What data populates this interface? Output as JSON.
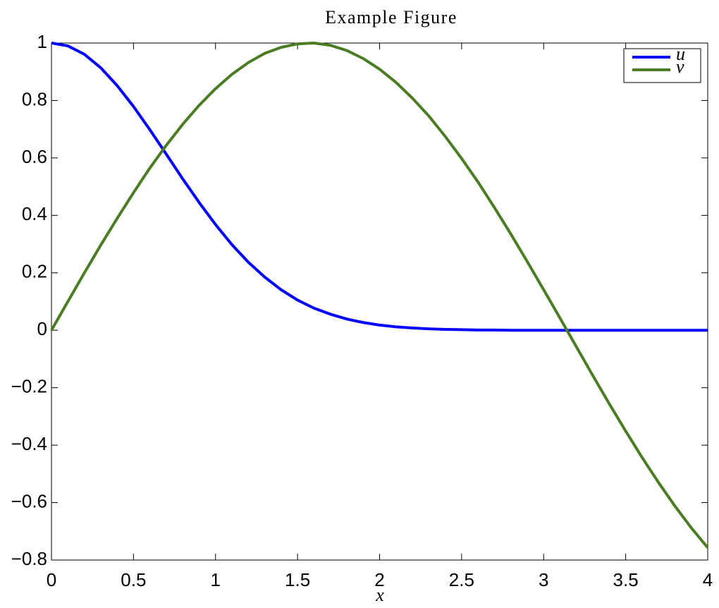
{
  "chart_data": {
    "type": "line",
    "title": "Example Figure",
    "x_label": "x",
    "x": [
      0,
      0.1,
      0.2,
      0.3,
      0.4,
      0.5,
      0.6,
      0.7,
      0.8,
      0.9,
      1,
      1.1,
      1.2,
      1.3,
      1.4,
      1.5,
      1.6,
      1.7,
      1.8,
      1.9,
      2,
      2.1,
      2.2,
      2.3,
      2.4,
      2.5,
      2.6,
      2.7,
      2.8,
      2.9,
      3,
      3.1,
      3.2,
      3.3,
      3.4,
      3.5,
      3.6,
      3.7,
      3.8,
      3.9,
      4
    ],
    "series": [
      {
        "name": "u",
        "color": "#0000ff",
        "values": [
          1,
          0.99,
          0.961,
          0.914,
          0.852,
          0.779,
          0.698,
          0.613,
          0.527,
          0.445,
          0.368,
          0.298,
          0.237,
          0.185,
          0.141,
          0.105,
          0.077,
          0.056,
          0.039,
          0.027,
          0.018,
          0.012,
          0.008,
          0.005,
          0.003,
          0.002,
          0.001,
          0.001,
          0,
          0,
          0,
          0,
          0,
          0,
          0,
          0,
          0,
          0,
          0,
          0,
          0
        ]
      },
      {
        "name": "v",
        "color": "#4a7d23",
        "values": [
          0,
          0.1,
          0.199,
          0.296,
          0.389,
          0.479,
          0.565,
          0.644,
          0.717,
          0.783,
          0.841,
          0.891,
          0.932,
          0.964,
          0.985,
          0.997,
          1,
          0.992,
          0.974,
          0.946,
          0.909,
          0.863,
          0.808,
          0.746,
          0.675,
          0.598,
          0.516,
          0.427,
          0.335,
          0.239,
          0.141,
          0.042,
          -0.058,
          -0.158,
          -0.256,
          -0.351,
          -0.443,
          -0.53,
          -0.612,
          -0.688,
          -0.757
        ]
      }
    ],
    "xlim": [
      0,
      4
    ],
    "xticks": [
      0,
      0.5,
      1,
      1.5,
      2,
      2.5,
      3,
      3.5,
      4
    ],
    "ylim": [
      -0.8,
      1
    ],
    "yticks": [
      {
        "value": -0.8,
        "label": "−0.8"
      },
      {
        "value": -0.6,
        "label": "−0.6"
      },
      {
        "value": -0.4,
        "label": "−0.4"
      },
      {
        "value": -0.2,
        "label": "−0.2"
      },
      0,
      0.2,
      0.4,
      0.6,
      0.8,
      1
    ],
    "grid": false,
    "legend": "upper right"
  }
}
